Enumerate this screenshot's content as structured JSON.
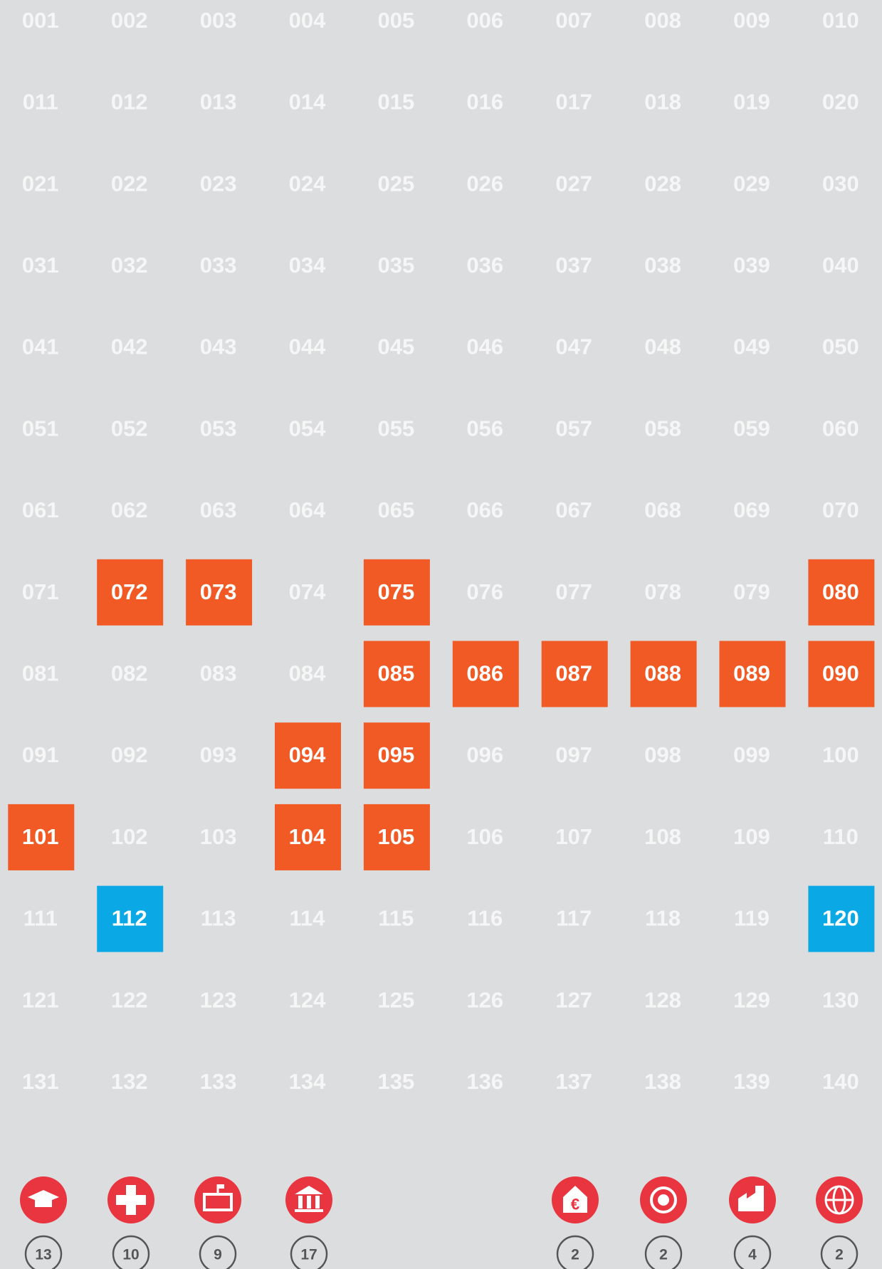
{
  "grid": {
    "cells": [
      {
        "label": "001"
      },
      {
        "label": "002"
      },
      {
        "label": "003"
      },
      {
        "label": "004"
      },
      {
        "label": "005"
      },
      {
        "label": "006"
      },
      {
        "label": "007"
      },
      {
        "label": "008"
      },
      {
        "label": "009"
      },
      {
        "label": "010"
      },
      {
        "label": "011"
      },
      {
        "label": "012"
      },
      {
        "label": "013"
      },
      {
        "label": "014"
      },
      {
        "label": "015"
      },
      {
        "label": "016"
      },
      {
        "label": "017"
      },
      {
        "label": "018"
      },
      {
        "label": "019"
      },
      {
        "label": "020"
      },
      {
        "label": "021"
      },
      {
        "label": "022"
      },
      {
        "label": "023"
      },
      {
        "label": "024"
      },
      {
        "label": "025"
      },
      {
        "label": "026"
      },
      {
        "label": "027"
      },
      {
        "label": "028"
      },
      {
        "label": "029"
      },
      {
        "label": "030"
      },
      {
        "label": "031"
      },
      {
        "label": "032"
      },
      {
        "label": "033"
      },
      {
        "label": "034"
      },
      {
        "label": "035"
      },
      {
        "label": "036"
      },
      {
        "label": "037"
      },
      {
        "label": "038"
      },
      {
        "label": "039"
      },
      {
        "label": "040"
      },
      {
        "label": "041"
      },
      {
        "label": "042"
      },
      {
        "label": "043"
      },
      {
        "label": "044"
      },
      {
        "label": "045"
      },
      {
        "label": "046"
      },
      {
        "label": "047"
      },
      {
        "label": "048"
      },
      {
        "label": "049"
      },
      {
        "label": "050"
      },
      {
        "label": "051"
      },
      {
        "label": "052"
      },
      {
        "label": "053"
      },
      {
        "label": "054"
      },
      {
        "label": "055"
      },
      {
        "label": "056"
      },
      {
        "label": "057"
      },
      {
        "label": "058"
      },
      {
        "label": "059"
      },
      {
        "label": "060"
      },
      {
        "label": "061"
      },
      {
        "label": "062"
      },
      {
        "label": "063"
      },
      {
        "label": "064"
      },
      {
        "label": "065"
      },
      {
        "label": "066"
      },
      {
        "label": "067"
      },
      {
        "label": "068"
      },
      {
        "label": "069"
      },
      {
        "label": "070"
      },
      {
        "label": "071"
      },
      {
        "label": "072",
        "color": "#f15a24"
      },
      {
        "label": "073",
        "color": "#f15a24"
      },
      {
        "label": "074"
      },
      {
        "label": "075",
        "color": "#f15a24"
      },
      {
        "label": "076"
      },
      {
        "label": "077"
      },
      {
        "label": "078"
      },
      {
        "label": "079"
      },
      {
        "label": "080",
        "color": "#f15a24"
      },
      {
        "label": "081"
      },
      {
        "label": "082"
      },
      {
        "label": "083"
      },
      {
        "label": "084"
      },
      {
        "label": "085",
        "color": "#f15a24"
      },
      {
        "label": "086",
        "color": "#f15a24"
      },
      {
        "label": "087",
        "color": "#f15a24"
      },
      {
        "label": "088",
        "color": "#f15a24"
      },
      {
        "label": "089",
        "color": "#f15a24"
      },
      {
        "label": "090",
        "color": "#f15a24"
      },
      {
        "label": "091"
      },
      {
        "label": "092"
      },
      {
        "label": "093"
      },
      {
        "label": "094",
        "color": "#f15a24"
      },
      {
        "label": "095",
        "color": "#f15a24"
      },
      {
        "label": "096"
      },
      {
        "label": "097"
      },
      {
        "label": "098"
      },
      {
        "label": "099"
      },
      {
        "label": "100"
      },
      {
        "label": "101",
        "color": "#f15a24"
      },
      {
        "label": "102"
      },
      {
        "label": "103"
      },
      {
        "label": "104",
        "color": "#f15a24"
      },
      {
        "label": "105",
        "color": "#f15a24"
      },
      {
        "label": "106"
      },
      {
        "label": "107"
      },
      {
        "label": "108"
      },
      {
        "label": "109"
      },
      {
        "label": "110"
      },
      {
        "label": "111"
      },
      {
        "label": "112",
        "color": "#0aa9e6"
      },
      {
        "label": "113"
      },
      {
        "label": "114"
      },
      {
        "label": "115"
      },
      {
        "label": "116"
      },
      {
        "label": "117"
      },
      {
        "label": "118"
      },
      {
        "label": "119"
      },
      {
        "label": "120",
        "color": "#0aa9e6"
      },
      {
        "label": "121"
      },
      {
        "label": "122"
      },
      {
        "label": "123"
      },
      {
        "label": "124"
      },
      {
        "label": "125"
      },
      {
        "label": "126"
      },
      {
        "label": "127"
      },
      {
        "label": "128"
      },
      {
        "label": "129"
      },
      {
        "label": "130"
      },
      {
        "label": "131"
      },
      {
        "label": "132"
      },
      {
        "label": "133"
      },
      {
        "label": "134"
      },
      {
        "label": "135"
      },
      {
        "label": "136"
      },
      {
        "label": "137"
      },
      {
        "label": "138"
      },
      {
        "label": "139"
      },
      {
        "label": "140"
      }
    ]
  },
  "legend": [
    {
      "count": 13
    },
    {
      "count": 10
    },
    {
      "count": 9
    },
    {
      "count": 17
    },
    {
      "count": 2
    },
    {
      "count": 2
    },
    {
      "count": 4
    },
    {
      "count": 2
    }
  ]
}
